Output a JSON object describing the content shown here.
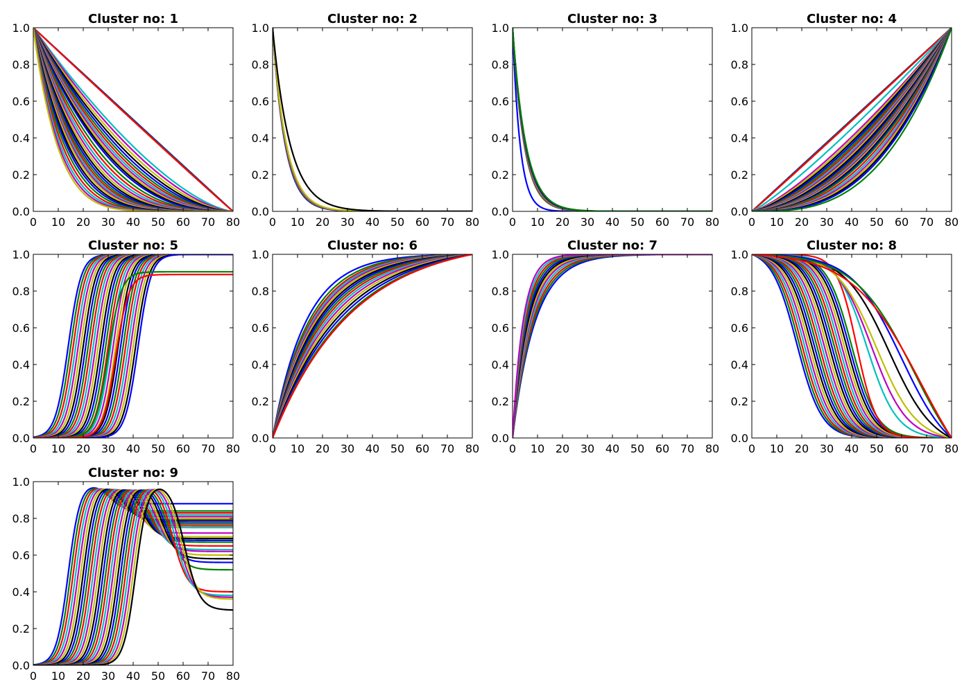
{
  "palette": [
    "#0000ff",
    "#008000",
    "#ff0000",
    "#00bfbf",
    "#bf00bf",
    "#bfbf00",
    "#000000"
  ],
  "chart_data": [
    {
      "type": "line",
      "title": "Cluster no: 1",
      "xlabel": "",
      "ylabel": "",
      "xlim": [
        0,
        80
      ],
      "ylim": [
        0,
        1
      ],
      "grid": false,
      "xticks": [
        0,
        10,
        20,
        30,
        40,
        50,
        60,
        70,
        80
      ],
      "yticks": [
        0.0,
        0.2,
        0.4,
        0.6,
        0.8,
        1.0
      ],
      "curve_family": "decay-to-zero-at-80",
      "params": [
        1.0,
        1.01,
        1.02,
        1.5,
        1.6,
        1.7,
        1.8,
        1.9,
        2.0,
        2.1,
        2.2,
        2.3,
        2.4,
        2.5,
        2.6,
        2.8,
        3.0,
        3.2,
        3.4,
        3.6,
        3.8,
        4.0,
        4.2,
        4.4,
        4.6,
        4.8,
        5.0,
        5.3,
        5.6,
        6.0,
        6.5,
        7.0,
        7.5,
        8.0
      ]
    },
    {
      "type": "line",
      "title": "Cluster no: 2",
      "xlabel": "",
      "ylabel": "",
      "xlim": [
        0,
        80
      ],
      "ylim": [
        0,
        1
      ],
      "grid": false,
      "xticks": [
        0,
        10,
        20,
        30,
        40,
        50,
        60,
        70,
        80
      ],
      "yticks": [
        0.0,
        0.2,
        0.4,
        0.6,
        0.8,
        1.0
      ],
      "curve_family": "exponential-decay",
      "params": [
        5.0,
        5.1,
        5.2,
        5.3,
        5.4,
        5.5,
        7.0
      ]
    },
    {
      "type": "line",
      "title": "Cluster no: 3",
      "xlabel": "",
      "ylabel": "",
      "xlim": [
        0,
        80
      ],
      "ylim": [
        0,
        1
      ],
      "grid": false,
      "xticks": [
        0,
        10,
        20,
        30,
        40,
        50,
        60,
        70,
        80
      ],
      "yticks": [
        0.0,
        0.2,
        0.4,
        0.6,
        0.8,
        1.0
      ],
      "curve_family": "exponential-decay",
      "params": [
        3.0,
        4.6,
        4.7,
        4.8,
        4.9,
        5.0,
        5.1,
        5.2,
        5.3
      ]
    },
    {
      "type": "line",
      "title": "Cluster no: 4",
      "xlabel": "",
      "ylabel": "",
      "xlim": [
        0,
        80
      ],
      "ylim": [
        0,
        1
      ],
      "grid": false,
      "xticks": [
        0,
        10,
        20,
        30,
        40,
        50,
        60,
        70,
        80
      ],
      "yticks": [
        0.0,
        0.2,
        0.4,
        0.6,
        0.8,
        1.0
      ],
      "curve_family": "power-rise",
      "params": [
        1.0,
        1.01,
        1.02,
        1.15,
        1.3,
        1.35,
        1.4,
        1.45,
        1.5,
        1.55,
        1.6,
        1.65,
        1.7,
        1.75,
        1.8,
        1.85,
        1.9,
        1.95,
        2.0,
        2.05,
        2.1,
        2.15,
        2.2,
        2.3,
        2.4,
        2.5,
        2.6,
        2.7,
        2.8,
        3.0
      ]
    },
    {
      "type": "line",
      "title": "Cluster no: 5",
      "xlabel": "",
      "ylabel": "",
      "xlim": [
        0,
        80
      ],
      "ylim": [
        0,
        1
      ],
      "grid": false,
      "xticks": [
        0,
        10,
        20,
        30,
        40,
        50,
        60,
        70,
        80
      ],
      "yticks": [
        0.0,
        0.2,
        0.4,
        0.6,
        0.8,
        1.0
      ],
      "curve_family": "sigmoid-rise",
      "params": [
        [
          14,
          1.0
        ],
        [
          15,
          1.0
        ],
        [
          16,
          1.0
        ],
        [
          17,
          1.0
        ],
        [
          18,
          1.0
        ],
        [
          19,
          1.0
        ],
        [
          20,
          1.0
        ],
        [
          21,
          1.0
        ],
        [
          22,
          1.0
        ],
        [
          23,
          1.0
        ],
        [
          24,
          1.0
        ],
        [
          25,
          1.0
        ],
        [
          26,
          1.0
        ],
        [
          27,
          1.0
        ],
        [
          28,
          1.0
        ],
        [
          29,
          1.0
        ],
        [
          30,
          1.0
        ],
        [
          31,
          1.0
        ],
        [
          32,
          1.0
        ],
        [
          33,
          1.0
        ],
        [
          34,
          1.0
        ],
        [
          35,
          1.0
        ],
        [
          36,
          1.0
        ],
        [
          37,
          1.0
        ],
        [
          38,
          1.0
        ],
        [
          39,
          1.0
        ],
        [
          40,
          1.0
        ],
        [
          41,
          1.0
        ],
        [
          42,
          1.0
        ],
        [
          30,
          0.905
        ],
        [
          33,
          0.89
        ]
      ]
    },
    {
      "type": "line",
      "title": "Cluster no: 6",
      "xlabel": "",
      "ylabel": "",
      "xlim": [
        0,
        80
      ],
      "ylim": [
        0,
        1
      ],
      "grid": false,
      "xticks": [
        0,
        10,
        20,
        30,
        40,
        50,
        60,
        70,
        80
      ],
      "yticks": [
        0.0,
        0.2,
        0.4,
        0.6,
        0.8,
        1.0
      ],
      "curve_family": "saturating-rise",
      "params": [
        6.0,
        5.5,
        5.2,
        5.0,
        4.8,
        4.6,
        4.4,
        4.2,
        4.0,
        3.8,
        3.6,
        3.4,
        3.2,
        3.0,
        2.8,
        2.6,
        2.5
      ]
    },
    {
      "type": "line",
      "title": "Cluster no: 7",
      "xlabel": "",
      "ylabel": "",
      "xlim": [
        0,
        80
      ],
      "ylim": [
        0,
        1
      ],
      "grid": false,
      "xticks": [
        0,
        10,
        20,
        30,
        40,
        50,
        60,
        70,
        80
      ],
      "yticks": [
        0.0,
        0.2,
        0.4,
        0.6,
        0.8,
        1.0
      ],
      "curve_family": "exponential-rise",
      "params": [
        9.0,
        8.5,
        8.0,
        7.5,
        7.0,
        6.6,
        6.2,
        5.8,
        5.4,
        5.0,
        4.6,
        4.2
      ]
    },
    {
      "type": "line",
      "title": "Cluster no: 8",
      "xlabel": "",
      "ylabel": "",
      "xlim": [
        0,
        80
      ],
      "ylim": [
        0,
        1
      ],
      "grid": false,
      "xticks": [
        0,
        10,
        20,
        30,
        40,
        50,
        60,
        70,
        80
      ],
      "yticks": [
        0.0,
        0.2,
        0.4,
        0.6,
        0.8,
        1.0
      ],
      "curve_family": "sigmoid-decay",
      "params": [
        [
          18,
          5,
          0.0
        ],
        [
          19,
          5,
          0.0
        ],
        [
          20,
          5,
          0.0
        ],
        [
          21,
          5,
          0.0
        ],
        [
          22,
          5,
          0.0
        ],
        [
          23,
          5,
          0.0
        ],
        [
          24,
          5,
          0.0
        ],
        [
          25,
          5,
          0.0
        ],
        [
          26,
          5,
          0.0
        ],
        [
          27,
          5,
          0.0
        ],
        [
          28,
          5,
          0.0
        ],
        [
          29,
          5,
          0.0
        ],
        [
          30,
          5,
          0.0
        ],
        [
          31,
          5,
          0.0
        ],
        [
          32,
          5,
          0.0
        ],
        [
          33,
          5,
          0.0
        ],
        [
          34,
          5,
          0.0
        ],
        [
          35,
          5,
          0.0
        ],
        [
          36,
          5,
          0.0
        ],
        [
          37,
          5,
          0.0
        ],
        [
          38,
          5,
          0.0
        ],
        [
          39,
          5,
          0.0
        ],
        [
          40,
          5,
          0.0
        ],
        [
          42,
          4,
          0.0
        ],
        [
          46,
          6,
          0.0
        ],
        [
          48,
          7,
          0.0
        ],
        [
          50,
          8,
          0.0
        ],
        [
          55,
          9,
          0.0
        ],
        [
          60,
          10,
          0.0
        ],
        [
          65,
          12,
          0.0
        ],
        [
          68,
          14,
          0.0
        ]
      ]
    },
    {
      "type": "line",
      "title": "Cluster no: 9",
      "xlabel": "",
      "ylabel": "",
      "xlim": [
        0,
        80
      ],
      "ylim": [
        0,
        1
      ],
      "grid": false,
      "xticks": [
        0,
        10,
        20,
        30,
        40,
        50,
        60,
        70,
        80
      ],
      "yticks": [
        0.0,
        0.2,
        0.4,
        0.6,
        0.8,
        1.0
      ],
      "curve_family": "rise-peak-settle",
      "params": [
        [
          14,
          0.88
        ],
        [
          15,
          0.84
        ],
        [
          16,
          0.83
        ],
        [
          17,
          0.82
        ],
        [
          18,
          0.81
        ],
        [
          19,
          0.8
        ],
        [
          20,
          0.79
        ],
        [
          21,
          0.78
        ],
        [
          22,
          0.77
        ],
        [
          23,
          0.76
        ],
        [
          24,
          0.75
        ],
        [
          25,
          0.72
        ],
        [
          26,
          0.7
        ],
        [
          27,
          0.69
        ],
        [
          28,
          0.68
        ],
        [
          29,
          0.67
        ],
        [
          30,
          0.65
        ],
        [
          31,
          0.63
        ],
        [
          32,
          0.62
        ],
        [
          33,
          0.6
        ],
        [
          34,
          0.58
        ],
        [
          35,
          0.56
        ],
        [
          36,
          0.52
        ],
        [
          37,
          0.4
        ],
        [
          38,
          0.38
        ],
        [
          39,
          0.37
        ],
        [
          40,
          0.36
        ],
        [
          41,
          0.3
        ]
      ]
    }
  ]
}
